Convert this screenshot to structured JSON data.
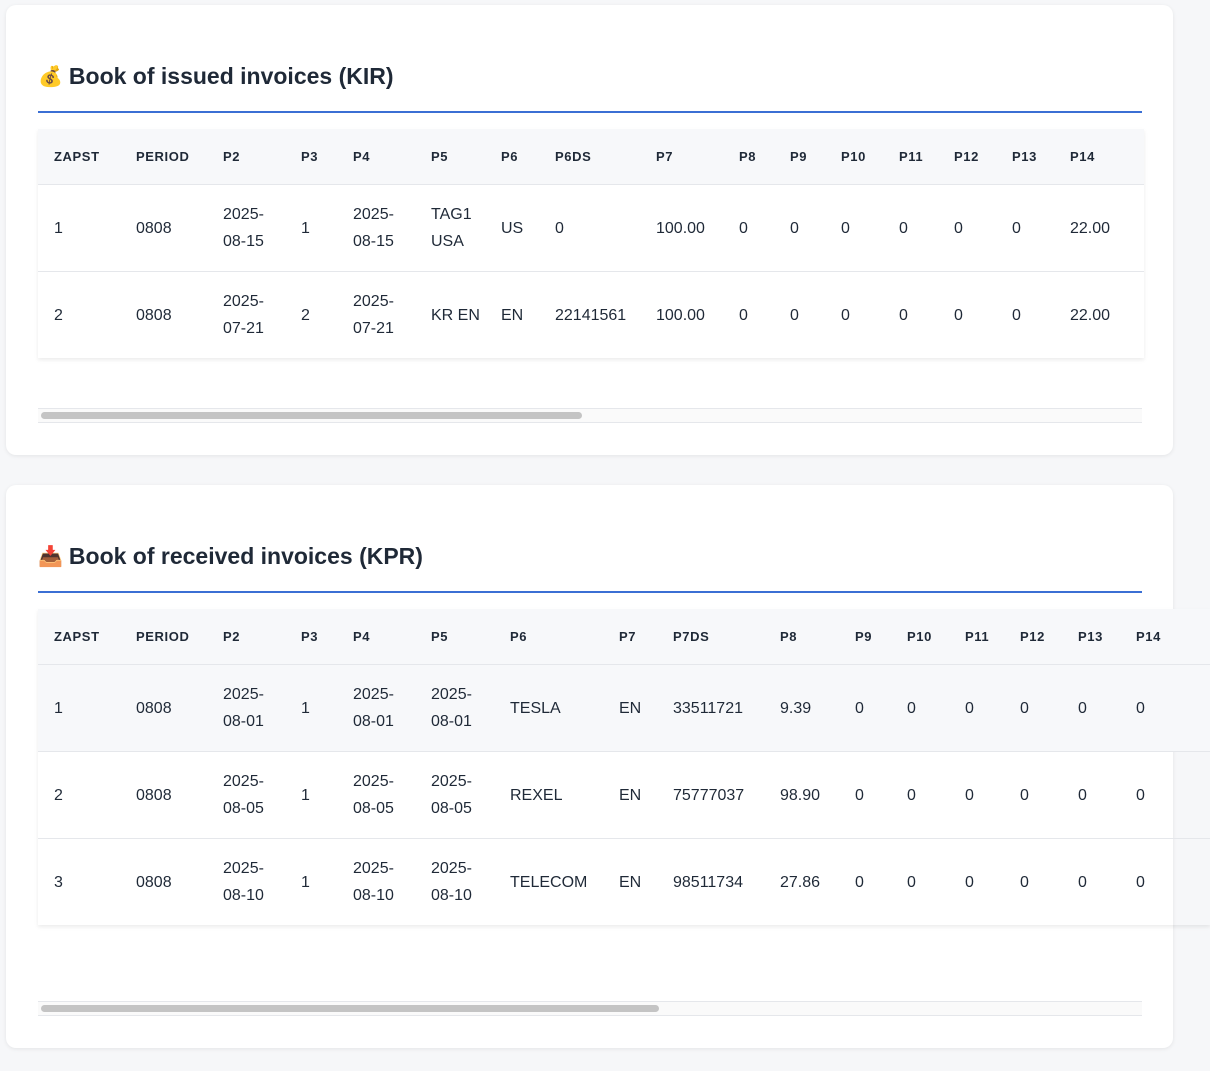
{
  "kir": {
    "icon": "💰",
    "title": "Book of issued invoices (KIR)",
    "scroll_fraction": 0.49,
    "columns": [
      "ZAPST",
      "PERIOD",
      "P2",
      "P3",
      "P4",
      "P5",
      "P6",
      "P6DS",
      "P7",
      "P8",
      "P9",
      "P10",
      "P11",
      "P12",
      "P13",
      "P14"
    ],
    "rows": [
      [
        "1",
        "0808",
        "2025-08-15",
        "1",
        "2025-08-15",
        "TAG1 USA",
        "US",
        "0",
        "100.00",
        "0",
        "0",
        "0",
        "0",
        "0",
        "0",
        "22.00"
      ],
      [
        "2",
        "0808",
        "2025-07-21",
        "2",
        "2025-07-21",
        "KR EN",
        "EN",
        "22141561",
        "100.00",
        "0",
        "0",
        "0",
        "0",
        "0",
        "0",
        "22.00"
      ]
    ]
  },
  "kpr": {
    "icon": "📥",
    "title": "Book of received invoices (KPR)",
    "scroll_fraction": 0.56,
    "columns": [
      "ZAPST",
      "PERIOD",
      "P2",
      "P3",
      "P4",
      "P5",
      "P6",
      "P7",
      "P7DS",
      "P8",
      "P9",
      "P10",
      "P11",
      "P12",
      "P13",
      "P14"
    ],
    "rows": [
      [
        "1",
        "0808",
        "2025-08-01",
        "1",
        "2025-08-01",
        "2025-08-01",
        "TESLA",
        "EN",
        "33511721",
        "9.39",
        "0",
        "0",
        "0",
        "0",
        "0",
        "0"
      ],
      [
        "2",
        "0808",
        "2025-08-05",
        "1",
        "2025-08-05",
        "2025-08-05",
        "REXEL",
        "EN",
        "75777037",
        "98.90",
        "0",
        "0",
        "0",
        "0",
        "0",
        "0"
      ],
      [
        "3",
        "0808",
        "2025-08-10",
        "1",
        "2025-08-10",
        "2025-08-10",
        "TELECOM",
        "EN",
        "98511734",
        "27.86",
        "0",
        "0",
        "0",
        "0",
        "0",
        "0"
      ]
    ]
  }
}
